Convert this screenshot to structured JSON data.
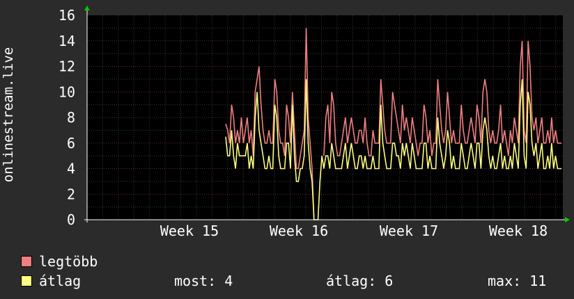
{
  "chart_data": {
    "type": "line",
    "ylabel": "onlinestream.live",
    "ylim": [
      0,
      16
    ],
    "yticks": [
      0,
      2,
      4,
      6,
      8,
      10,
      12,
      14,
      16
    ],
    "xticks": [
      "Week 15",
      "Week 16",
      "Week 17",
      "Week 18"
    ],
    "colors": {
      "background": "#2b2b2b",
      "plot": "#000000",
      "grid": "#3a3a3a",
      "major_grid": "#6b2a2a",
      "axis": "#ffffff",
      "arrow": "#00cc00"
    },
    "series": [
      {
        "name": "legtöbb",
        "color": "#f07f80",
        "values": [
          7.5,
          7,
          6,
          9,
          8,
          6,
          7,
          6,
          8,
          6,
          7,
          8,
          6,
          7,
          5,
          10,
          11,
          12,
          9,
          7,
          6,
          6,
          7,
          6,
          6,
          11,
          10,
          7,
          6,
          6,
          5,
          9,
          8,
          6,
          10,
          7,
          4,
          4,
          5,
          6,
          7,
          15,
          8,
          6,
          4,
          0,
          0,
          0,
          4,
          6,
          5,
          8,
          9,
          6,
          10,
          9,
          6,
          5,
          5,
          6,
          7,
          8,
          6,
          7,
          8,
          7,
          6,
          6,
          7,
          7,
          6,
          8,
          6,
          5,
          5,
          7,
          6,
          6,
          6,
          11,
          9,
          7,
          6,
          6,
          6,
          10,
          9,
          8,
          7,
          6,
          9,
          7,
          8,
          7,
          6,
          8,
          7,
          6,
          5,
          6,
          6,
          9,
          8,
          6,
          7,
          5,
          6,
          6,
          11,
          9,
          7,
          6,
          7,
          10,
          8,
          6,
          7,
          6,
          6,
          6,
          9,
          7,
          6,
          6,
          7,
          8,
          7,
          6,
          9,
          8,
          6,
          10,
          11,
          10,
          7,
          6,
          7,
          6,
          6,
          7,
          9,
          6,
          7,
          6,
          5,
          7,
          6,
          8,
          7,
          6,
          12,
          14,
          7,
          6,
          14,
          12,
          8,
          7,
          8,
          6,
          7,
          8,
          6,
          6,
          7,
          6,
          8,
          6,
          7,
          6,
          6,
          6
        ],
        "gap": [
          46,
          49
        ]
      },
      {
        "name": "átlag",
        "color": "#fcfc80",
        "values": [
          6.5,
          5,
          5,
          7,
          5,
          4,
          6,
          5,
          5,
          5,
          5,
          6,
          4,
          5,
          4,
          8,
          10,
          7,
          6,
          5,
          4,
          4,
          5,
          4,
          4,
          9,
          8,
          5,
          4,
          4,
          4,
          6,
          6,
          4,
          9,
          5,
          3,
          3,
          4,
          4,
          5,
          11,
          6,
          4,
          3,
          0,
          0,
          0,
          3,
          5,
          4,
          5,
          5,
          4,
          6,
          5,
          4,
          4,
          4,
          4,
          5,
          6,
          4,
          5,
          6,
          5,
          4,
          4,
          5,
          5,
          4,
          5,
          4,
          4,
          4,
          5,
          4,
          4,
          4,
          9,
          6,
          5,
          4,
          4,
          4,
          6,
          6,
          5,
          5,
          4,
          6,
          5,
          6,
          5,
          4,
          6,
          5,
          4,
          4,
          4,
          4,
          6,
          6,
          4,
          5,
          4,
          4,
          4,
          8,
          6,
          5,
          4,
          5,
          7,
          6,
          4,
          5,
          4,
          4,
          4,
          6,
          5,
          4,
          4,
          5,
          6,
          5,
          4,
          6,
          6,
          4,
          7,
          8,
          7,
          5,
          4,
          5,
          4,
          4,
          5,
          6,
          4,
          5,
          4,
          4,
          5,
          4,
          6,
          5,
          4,
          9,
          11,
          5,
          4,
          10,
          9,
          6,
          5,
          6,
          4,
          5,
          6,
          4,
          4,
          5,
          4,
          6,
          4,
          5,
          4,
          4,
          4
        ],
        "gap": [
          46,
          49
        ]
      }
    ]
  },
  "legend": {
    "max_label": "legtöbb",
    "avg_label": "átlag",
    "now": "most: 4",
    "avg": "átlag: 6",
    "max": "max: 11"
  }
}
